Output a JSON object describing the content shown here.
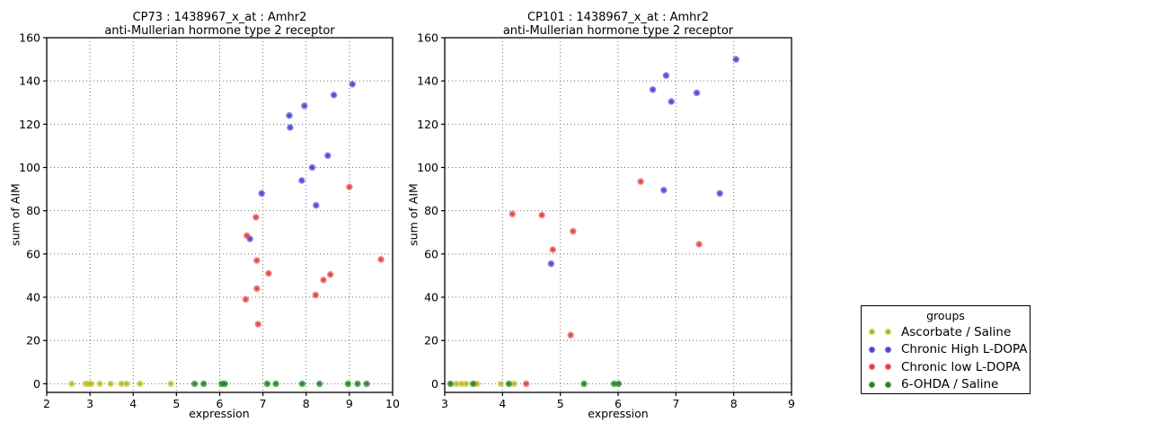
{
  "figure": {
    "background": "#ffffff"
  },
  "legend": {
    "title": "groups",
    "entries": [
      {
        "label": "Ascorbate / Saline",
        "color": "#c8c832"
      },
      {
        "label": "Chronic High L-DOPA",
        "color": "#4444dd"
      },
      {
        "label": "Chronic low L-DOPA",
        "color": "#ee4444"
      },
      {
        "label": "6-OHDA / Saline",
        "color": "#228822"
      }
    ]
  },
  "chart_data": [
    {
      "type": "scatter",
      "title": "CP73 : 1438967_x_at : Amhr2",
      "subtitle": "anti-Mullerian hormone type 2 receptor",
      "xlabel": "expression",
      "ylabel": "sum of AIM",
      "xlim": [
        2,
        10
      ],
      "ylim": [
        -4,
        160
      ],
      "xticks": [
        2,
        3,
        4,
        5,
        6,
        7,
        8,
        9,
        10
      ],
      "yticks": [
        0,
        20,
        40,
        60,
        80,
        100,
        120,
        140,
        160
      ],
      "grid": true,
      "legend_position": "outside-right",
      "series": [
        {
          "name": "Ascorbate / Saline",
          "color": "#c8c832",
          "points": [
            [
              2.58,
              0
            ],
            [
              2.9,
              0
            ],
            [
              2.97,
              0
            ],
            [
              3.03,
              0
            ],
            [
              3.23,
              0
            ],
            [
              3.48,
              0
            ],
            [
              3.73,
              0
            ],
            [
              3.85,
              0
            ],
            [
              4.16,
              0
            ],
            [
              4.87,
              0
            ]
          ]
        },
        {
          "name": "Chronic High L-DOPA",
          "color": "#4444dd",
          "points": [
            [
              6.7,
              67
            ],
            [
              6.97,
              88
            ],
            [
              7.61,
              124
            ],
            [
              7.63,
              118.5
            ],
            [
              7.9,
              94
            ],
            [
              7.96,
              128.5
            ],
            [
              8.14,
              100
            ],
            [
              8.23,
              82.5
            ],
            [
              8.5,
              105.5
            ],
            [
              8.64,
              133.5
            ],
            [
              9.07,
              138.5
            ]
          ]
        },
        {
          "name": "Chronic low L-DOPA",
          "color": "#ee4444",
          "points": [
            [
              6.6,
              39
            ],
            [
              6.63,
              68.5
            ],
            [
              6.84,
              77
            ],
            [
              6.86,
              57
            ],
            [
              6.86,
              44
            ],
            [
              6.89,
              27.5
            ],
            [
              7.13,
              51
            ],
            [
              8.22,
              41
            ],
            [
              8.4,
              48
            ],
            [
              8.56,
              50.5
            ],
            [
              9.0,
              91
            ],
            [
              9.73,
              57.5
            ]
          ]
        },
        {
          "name": "6-OHDA / Saline",
          "color": "#228822",
          "points": [
            [
              5.42,
              0
            ],
            [
              5.63,
              0
            ],
            [
              6.05,
              0
            ],
            [
              6.12,
              0
            ],
            [
              7.1,
              0
            ],
            [
              7.3,
              0
            ],
            [
              7.91,
              0
            ],
            [
              8.31,
              0
            ],
            [
              8.97,
              0
            ],
            [
              9.19,
              0
            ],
            [
              9.4,
              0
            ]
          ]
        }
      ]
    },
    {
      "type": "scatter",
      "title": "CP101 : 1438967_x_at : Amhr2",
      "subtitle": "anti-Mullerian hormone type 2 receptor",
      "xlabel": "expression",
      "ylabel": "sum of AIM",
      "xlim": [
        3,
        9
      ],
      "ylim": [
        -4,
        160
      ],
      "xticks": [
        3,
        4,
        5,
        6,
        7,
        8,
        9
      ],
      "yticks": [
        0,
        20,
        40,
        60,
        80,
        100,
        120,
        140,
        160
      ],
      "grid": true,
      "legend_position": "outside-right",
      "series": [
        {
          "name": "Ascorbate / Saline",
          "color": "#c8c832",
          "points": [
            [
              3.2,
              0
            ],
            [
              3.29,
              0
            ],
            [
              3.37,
              0
            ],
            [
              3.56,
              0
            ],
            [
              3.97,
              0
            ],
            [
              4.2,
              0
            ]
          ]
        },
        {
          "name": "Chronic High L-DOPA",
          "color": "#4444dd",
          "points": [
            [
              4.84,
              55.5
            ],
            [
              6.6,
              136
            ],
            [
              6.79,
              89.5
            ],
            [
              6.83,
              142.5
            ],
            [
              6.92,
              130.5
            ],
            [
              7.36,
              134.5
            ],
            [
              7.76,
              88
            ],
            [
              8.04,
              150
            ]
          ]
        },
        {
          "name": "Chronic low L-DOPA",
          "color": "#ee4444",
          "points": [
            [
              4.17,
              78.5
            ],
            [
              4.41,
              0
            ],
            [
              4.68,
              78
            ],
            [
              4.87,
              62
            ],
            [
              5.18,
              22.5
            ],
            [
              5.22,
              70.5
            ],
            [
              6.39,
              93.5
            ],
            [
              7.4,
              64.5
            ]
          ]
        },
        {
          "name": "6-OHDA / Saline",
          "color": "#228822",
          "points": [
            [
              3.1,
              0
            ],
            [
              3.49,
              0
            ],
            [
              4.11,
              0
            ],
            [
              5.41,
              0
            ],
            [
              5.93,
              0
            ],
            [
              6.01,
              0
            ]
          ]
        }
      ]
    }
  ]
}
